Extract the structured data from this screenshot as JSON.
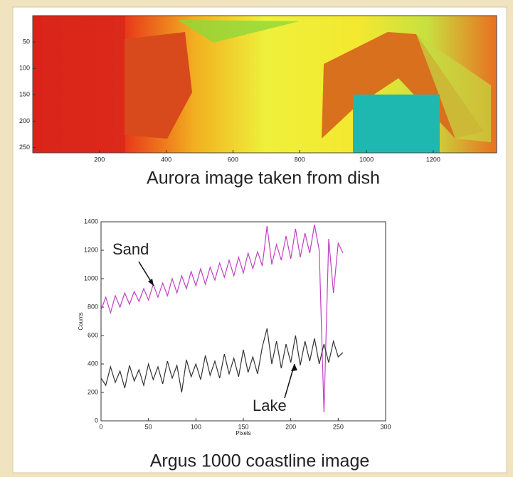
{
  "chart_data": [
    {
      "type": "image",
      "title": "Aurora image  taken from dish",
      "xlim": [
        0,
        1390
      ],
      "ylim": [
        0,
        260
      ],
      "xticks": [
        200,
        400,
        600,
        800,
        1000,
        1200
      ],
      "yticks": [
        50,
        100,
        150,
        200,
        250
      ]
    },
    {
      "type": "line",
      "title": "Argus 1000 coastline image",
      "x_label": "Pixels",
      "y_label": "Counts",
      "annotations": [
        "Sand",
        "Lake"
      ],
      "xlim": [
        0,
        300
      ],
      "ylim": [
        0,
        1400
      ],
      "xticks": [
        0,
        50,
        100,
        150,
        200,
        250,
        300
      ],
      "yticks": [
        0,
        200,
        400,
        600,
        800,
        1000,
        1200,
        1400
      ],
      "x": [
        0,
        5,
        10,
        15,
        20,
        25,
        30,
        35,
        40,
        45,
        50,
        55,
        60,
        65,
        70,
        75,
        80,
        85,
        90,
        95,
        100,
        105,
        110,
        115,
        120,
        125,
        130,
        135,
        140,
        145,
        150,
        155,
        160,
        165,
        170,
        175,
        180,
        185,
        190,
        195,
        200,
        205,
        210,
        215,
        220,
        225,
        230,
        235,
        240,
        245,
        250,
        255
      ],
      "series": [
        {
          "name": "Sand",
          "color": "#c23fc4",
          "values": [
            780,
            870,
            760,
            880,
            800,
            900,
            820,
            910,
            840,
            930,
            850,
            960,
            870,
            970,
            880,
            1000,
            900,
            1020,
            930,
            1050,
            950,
            1070,
            960,
            1080,
            990,
            1110,
            1010,
            1130,
            1020,
            1150,
            1040,
            1180,
            1070,
            1190,
            1090,
            1370,
            1100,
            1240,
            1130,
            1300,
            1140,
            1350,
            1150,
            1320,
            1180,
            1380,
            1200,
            60,
            1280,
            900,
            1250,
            1180
          ]
        },
        {
          "name": "Lake",
          "color": "#333333",
          "values": [
            300,
            250,
            380,
            270,
            350,
            230,
            390,
            280,
            360,
            250,
            400,
            290,
            380,
            260,
            420,
            300,
            390,
            200,
            430,
            310,
            400,
            290,
            460,
            320,
            420,
            300,
            470,
            330,
            440,
            310,
            500,
            340,
            450,
            330,
            520,
            650,
            400,
            560,
            370,
            540,
            410,
            600,
            390,
            560,
            420,
            580,
            400,
            540,
            410,
            560,
            450,
            480
          ]
        }
      ]
    }
  ]
}
